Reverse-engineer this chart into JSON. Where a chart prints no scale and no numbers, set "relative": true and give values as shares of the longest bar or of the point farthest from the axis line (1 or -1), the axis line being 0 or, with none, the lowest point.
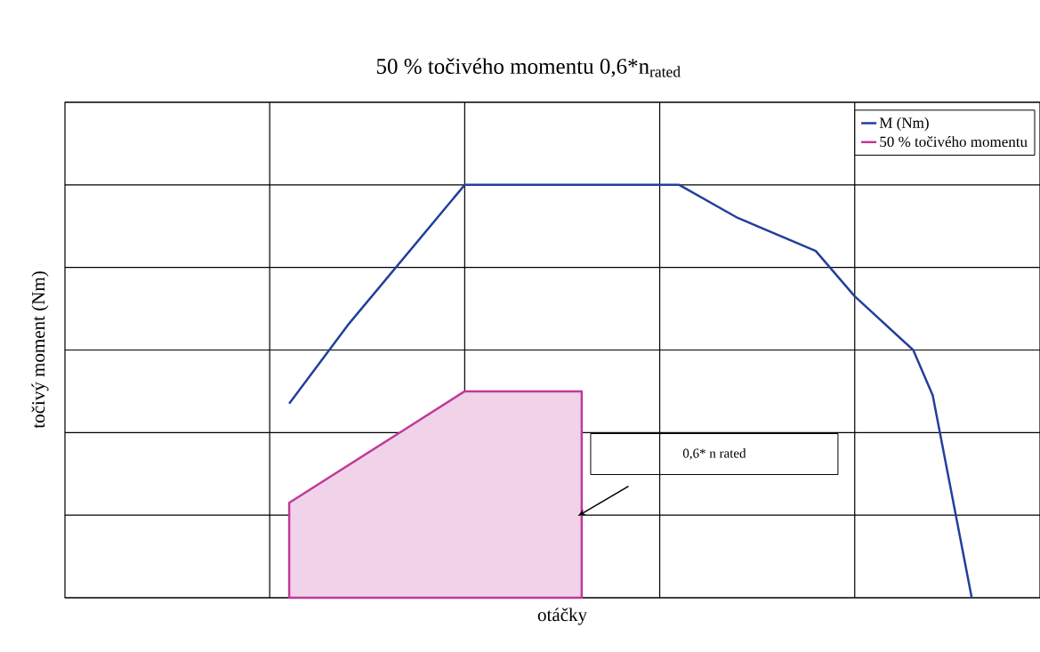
{
  "chart_data": {
    "type": "line",
    "title": "50 % točivého momentu 0,6*n$_{rated}$",
    "xlabel": "otáčky",
    "ylabel": "točivý moment (Nm)",
    "relative": true,
    "categories": [
      null,
      null,
      null,
      null,
      null,
      null,
      null,
      null,
      null,
      null,
      null,
      null,
      null,
      null,
      null,
      null,
      null,
      null,
      null,
      null,
      null,
      null,
      null,
      null,
      null,
      null,
      null,
      null,
      null,
      null,
      null,
      null,
      null,
      null,
      null,
      null,
      null,
      null,
      null,
      null,
      null,
      null,
      null,
      null,
      null,
      null,
      null,
      null,
      null,
      null
    ],
    "grid": true,
    "legend": "top right",
    "series": [
      {
        "name": "M (Nm)",
        "color": "#233f9a",
        "values": [
          null,
          null,
          null,
          null,
          null,
          null,
          null,
          null,
          null,
          null,
          null,
          0.47,
          null,
          null,
          0.66,
          null,
          null,
          null,
          null,
          null,
          1.0,
          null,
          null,
          null,
          null,
          null,
          null,
          null,
          null,
          null,
          null,
          1.0,
          null,
          null,
          0.92,
          null,
          null,
          null,
          0.84,
          null,
          0.73,
          null,
          null,
          0.6,
          0.49,
          null,
          0,
          null,
          null,
          null
        ]
      },
      {
        "name": "50 % točivého momentu",
        "type": "area",
        "color": "#c0399a",
        "values": [
          null,
          null,
          null,
          null,
          null,
          null,
          null,
          null,
          null,
          null,
          null,
          0.23,
          null,
          null,
          null,
          null,
          null,
          0.41,
          null,
          null,
          0.5,
          null,
          null,
          null,
          null,
          null,
          0.5,
          null,
          null,
          null,
          null,
          null,
          null,
          null,
          null,
          null,
          null,
          null,
          null,
          null,
          null,
          null,
          null,
          null,
          null,
          null,
          null,
          null,
          null,
          null
        ]
      }
    ],
    "annotations": [
      "0,6* n rated"
    ]
  }
}
